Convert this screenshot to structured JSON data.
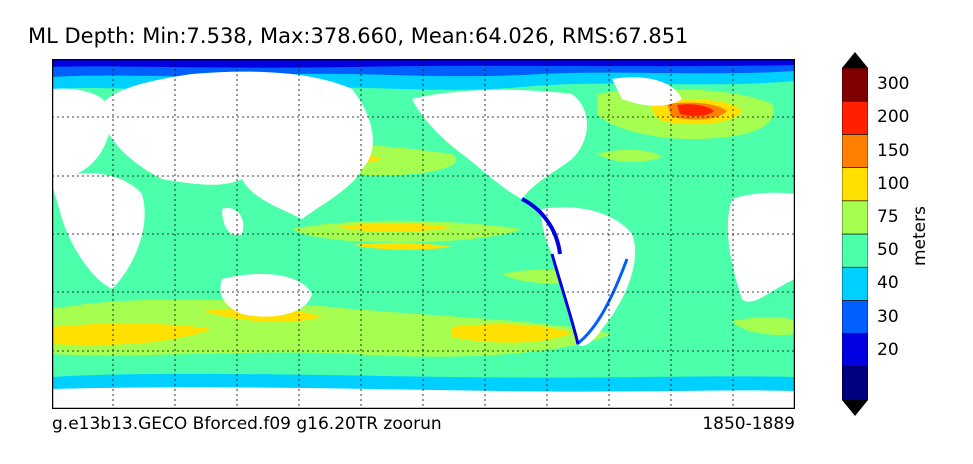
{
  "title": "ML Depth: Min:7.538, Max:378.660, Mean:64.026, RMS:67.851",
  "footer_left": "g.e13b13.GECO Bforced.f09 g16.20TR zoorun",
  "footer_right": "1850-1889",
  "colorbar": {
    "unit": "meters",
    "levels": [
      {
        "color": "#00007f",
        "label": ""
      },
      {
        "color": "#0000e0",
        "label": "20"
      },
      {
        "color": "#0060ff",
        "label": "30"
      },
      {
        "color": "#00d0ff",
        "label": "40"
      },
      {
        "color": "#4cffaa",
        "label": "50"
      },
      {
        "color": "#a6ff50",
        "label": "75"
      },
      {
        "color": "#ffe000",
        "label": "100"
      },
      {
        "color": "#ff7f00",
        "label": "150"
      },
      {
        "color": "#ff2000",
        "label": "200"
      },
      {
        "color": "#7f0000",
        "label": "300"
      }
    ]
  }
}
